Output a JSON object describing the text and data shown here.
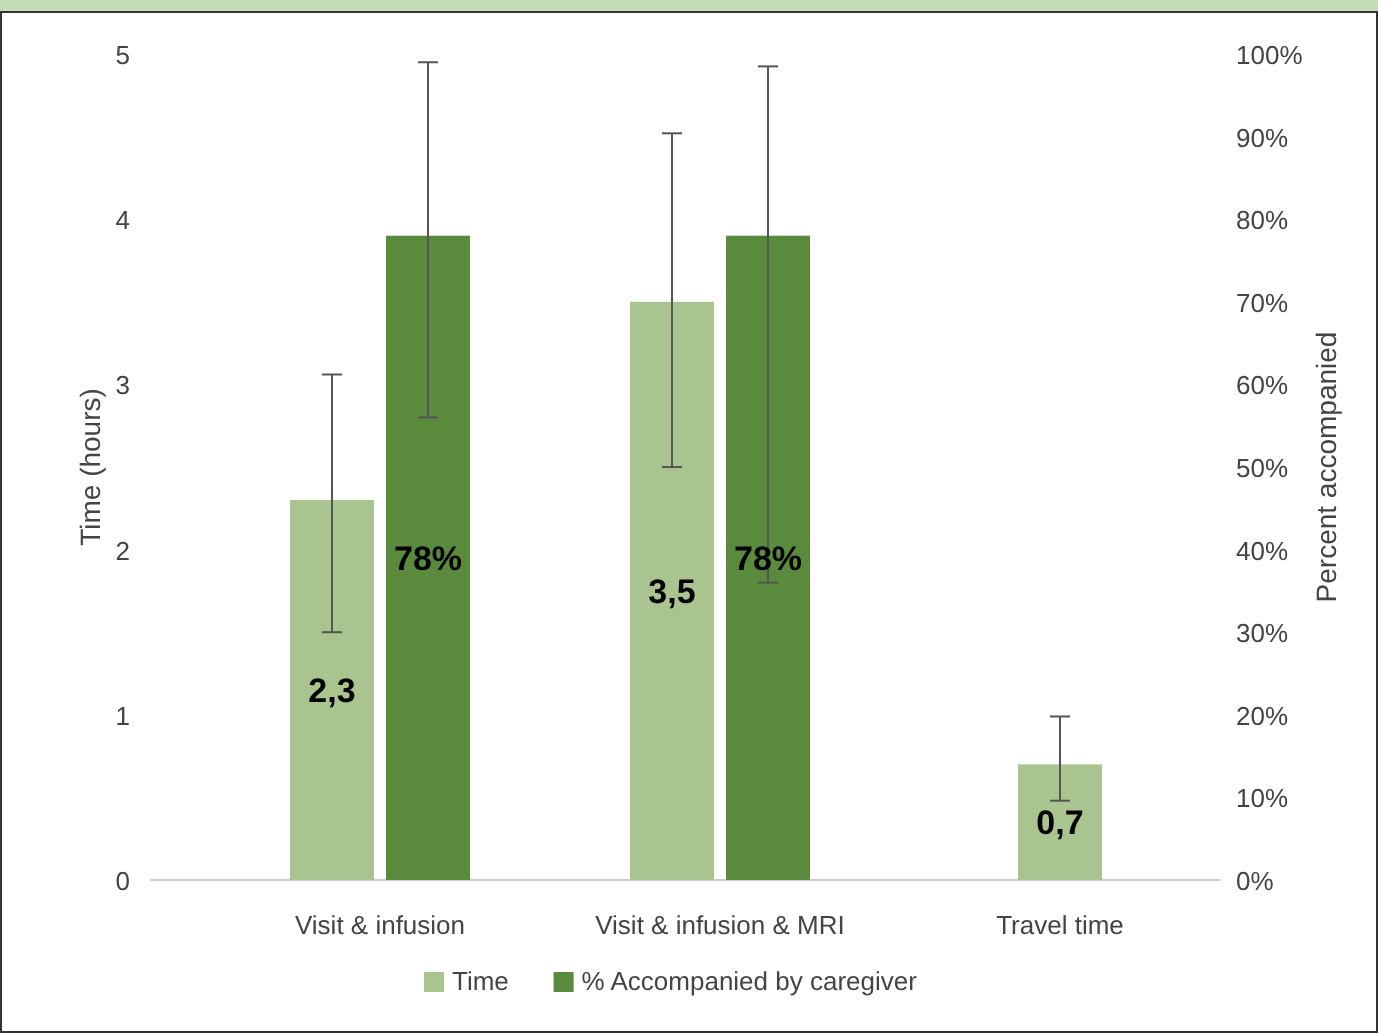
{
  "chart_data": {
    "type": "bar",
    "ylabel": "Time (hours)",
    "y2label": "Percent accompanied",
    "categories": [
      "Visit & infusion",
      "Visit & infusion & MRI",
      "Travel time"
    ],
    "series": [
      {
        "name": "Time",
        "color": "#a9c48f",
        "values": [
          2.3,
          3.5,
          0.7
        ],
        "errors": [
          [
            1.5,
            3.06
          ],
          [
            2.5,
            4.52
          ],
          [
            0.48,
            0.99
          ]
        ],
        "value_labels": [
          "2,3",
          "3,5",
          "0,7"
        ]
      },
      {
        "name": "% Accompanied by caregiver",
        "color": "#5a8a3c",
        "axis": "y2",
        "values": [
          78,
          78,
          null
        ],
        "errors": [
          [
            56,
            99
          ],
          [
            36,
            98.5
          ],
          null
        ],
        "value_labels": [
          "78%",
          "78%",
          null
        ]
      }
    ],
    "ylim": [
      0,
      5
    ],
    "yticks": [
      0,
      1,
      2,
      3,
      4,
      5
    ],
    "y2lim": [
      0,
      100
    ],
    "y2ticks": [
      {
        "value": 0,
        "label": "0%"
      },
      {
        "value": 10,
        "label": "10%"
      },
      {
        "value": 20,
        "label": "20%"
      },
      {
        "value": 30,
        "label": "30%"
      },
      {
        "value": 40,
        "label": "40%"
      },
      {
        "value": 50,
        "label": "50%"
      },
      {
        "value": 60,
        "label": "60%"
      },
      {
        "value": 70,
        "label": "70%"
      },
      {
        "value": 80,
        "label": "80%"
      },
      {
        "value": 90,
        "label": "90%"
      },
      {
        "value": 100,
        "label": "100%"
      }
    ],
    "legend": "bottom",
    "grid": false
  }
}
